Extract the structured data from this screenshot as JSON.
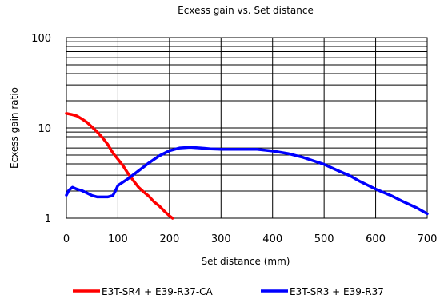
{
  "chart_data": {
    "type": "line",
    "title": "Ecxess gain vs. Set distance",
    "xlabel": "Set distance (mm)",
    "ylabel": "Ecxess gain ratio",
    "xlim": [
      0,
      700
    ],
    "ylim": [
      1,
      100
    ],
    "yscale": "log",
    "grid": true,
    "legend_position": "bottom",
    "x_ticks": [
      0,
      100,
      200,
      300,
      400,
      500,
      600,
      700
    ],
    "x_tick_labels": [
      "0",
      "100",
      "200",
      "300",
      "400",
      "500",
      "600",
      "700"
    ],
    "y_ticks": [
      1,
      10,
      100
    ],
    "y_tick_labels": [
      "1",
      "10",
      "100"
    ],
    "series": [
      {
        "name": "E3T-SR4 + E39-R37-CA",
        "color": "#ff0000",
        "points": [
          [
            0,
            14.5
          ],
          [
            10,
            14.1
          ],
          [
            20,
            13.6
          ],
          [
            30,
            12.6
          ],
          [
            40,
            11.5
          ],
          [
            50,
            10.2
          ],
          [
            60,
            9.0
          ],
          [
            70,
            7.8
          ],
          [
            80,
            6.6
          ],
          [
            90,
            5.3
          ],
          [
            100,
            4.5
          ],
          [
            110,
            3.8
          ],
          [
            120,
            3.1
          ],
          [
            130,
            2.6
          ],
          [
            140,
            2.2
          ],
          [
            150,
            1.95
          ],
          [
            160,
            1.75
          ],
          [
            170,
            1.52
          ],
          [
            180,
            1.37
          ],
          [
            190,
            1.2
          ],
          [
            200,
            1.06
          ],
          [
            206,
            1.0
          ]
        ]
      },
      {
        "name": "E3T-SR3 + E39-R37",
        "color": "#0000ff",
        "points": [
          [
            0,
            1.8
          ],
          [
            5,
            2.05
          ],
          [
            12,
            2.2
          ],
          [
            20,
            2.1
          ],
          [
            30,
            2.02
          ],
          [
            40,
            1.9
          ],
          [
            50,
            1.78
          ],
          [
            60,
            1.72
          ],
          [
            80,
            1.72
          ],
          [
            90,
            1.78
          ],
          [
            95,
            2.0
          ],
          [
            100,
            2.3
          ],
          [
            120,
            2.75
          ],
          [
            140,
            3.35
          ],
          [
            160,
            4.1
          ],
          [
            180,
            4.9
          ],
          [
            200,
            5.6
          ],
          [
            220,
            6.0
          ],
          [
            240,
            6.1
          ],
          [
            260,
            6.0
          ],
          [
            280,
            5.85
          ],
          [
            300,
            5.8
          ],
          [
            340,
            5.8
          ],
          [
            370,
            5.8
          ],
          [
            400,
            5.55
          ],
          [
            430,
            5.2
          ],
          [
            460,
            4.7
          ],
          [
            480,
            4.3
          ],
          [
            500,
            3.95
          ],
          [
            530,
            3.3
          ],
          [
            550,
            2.95
          ],
          [
            570,
            2.55
          ],
          [
            600,
            2.1
          ],
          [
            630,
            1.78
          ],
          [
            650,
            1.56
          ],
          [
            680,
            1.3
          ],
          [
            700,
            1.12
          ]
        ]
      }
    ]
  }
}
